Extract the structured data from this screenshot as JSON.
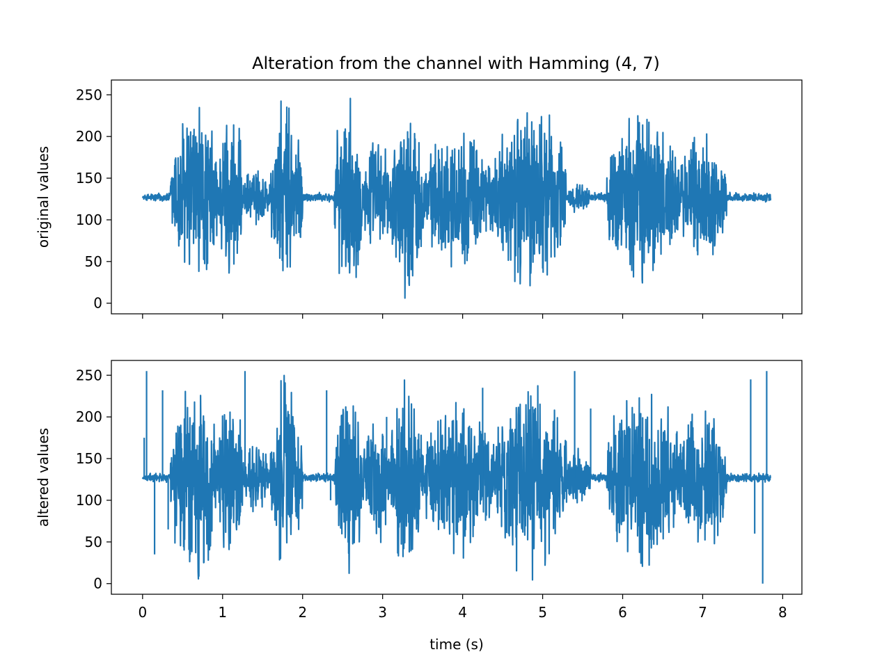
{
  "figure": {
    "title": "Alteration from the channel with Hamming (4, 7)"
  },
  "chart_data": [
    {
      "type": "line",
      "panel": "top",
      "ylabel": "original values",
      "xlabel": "",
      "xlim": [
        -0.39,
        8.24
      ],
      "ylim": [
        -12.75,
        267.75
      ],
      "x_ticks": [
        0,
        1,
        2,
        3,
        4,
        5,
        6,
        7,
        8
      ],
      "x_tick_labels_visible": false,
      "y_ticks": [
        0,
        50,
        100,
        150,
        200,
        250
      ],
      "y_tick_labels": [
        "0",
        "50",
        "100",
        "150",
        "200",
        "250"
      ],
      "grid": false,
      "series": [
        {
          "color": "#1f77b4",
          "x_range": [
            0,
            7.85
          ],
          "baseline": 127,
          "min": 0,
          "max": 255,
          "bursts": [
            {
              "start": 0.35,
              "end": 0.95,
              "amp": 128
            },
            {
              "start": 0.95,
              "end": 1.25,
              "amp": 120
            },
            {
              "start": 1.25,
              "end": 1.6,
              "amp": 40
            },
            {
              "start": 1.6,
              "end": 2.0,
              "amp": 128
            },
            {
              "start": 2.4,
              "end": 2.75,
              "amp": 128
            },
            {
              "start": 2.75,
              "end": 3.1,
              "amp": 80
            },
            {
              "start": 3.1,
              "end": 3.5,
              "amp": 128
            },
            {
              "start": 3.5,
              "end": 4.4,
              "amp": 90
            },
            {
              "start": 4.4,
              "end": 5.3,
              "amp": 128
            },
            {
              "start": 5.3,
              "end": 5.6,
              "amp": 20
            },
            {
              "start": 5.8,
              "end": 6.7,
              "amp": 120
            },
            {
              "start": 6.7,
              "end": 7.3,
              "amp": 90
            }
          ]
        }
      ]
    },
    {
      "type": "line",
      "panel": "bottom",
      "ylabel": "altered values",
      "xlabel": "time (s)",
      "xlim": [
        -0.39,
        8.24
      ],
      "ylim": [
        -12.75,
        267.75
      ],
      "x_ticks": [
        0,
        1,
        2,
        3,
        4,
        5,
        6,
        7,
        8
      ],
      "x_tick_labels": [
        "0",
        "1",
        "2",
        "3",
        "4",
        "5",
        "6",
        "7",
        "8"
      ],
      "y_ticks": [
        0,
        50,
        100,
        150,
        200,
        250
      ],
      "y_tick_labels": [
        "0",
        "50",
        "100",
        "150",
        "200",
        "250"
      ],
      "grid": false,
      "series": [
        {
          "color": "#1f77b4",
          "x_range": [
            0,
            7.85
          ],
          "baseline": 127,
          "min": 0,
          "max": 255,
          "bursts": [
            {
              "start": 0.35,
              "end": 0.95,
              "amp": 128
            },
            {
              "start": 0.95,
              "end": 1.25,
              "amp": 120
            },
            {
              "start": 1.25,
              "end": 1.6,
              "amp": 50
            },
            {
              "start": 1.6,
              "end": 2.0,
              "amp": 128
            },
            {
              "start": 2.4,
              "end": 2.75,
              "amp": 128
            },
            {
              "start": 2.75,
              "end": 3.1,
              "amp": 90
            },
            {
              "start": 3.1,
              "end": 3.5,
              "amp": 128
            },
            {
              "start": 3.5,
              "end": 4.4,
              "amp": 100
            },
            {
              "start": 4.4,
              "end": 5.3,
              "amp": 128
            },
            {
              "start": 5.3,
              "end": 5.6,
              "amp": 40
            },
            {
              "start": 5.8,
              "end": 6.7,
              "amp": 120
            },
            {
              "start": 6.7,
              "end": 7.3,
              "amp": 100
            }
          ],
          "spikes": [
            {
              "t": 0.05,
              "v": 255
            },
            {
              "t": 0.02,
              "v": 175
            },
            {
              "t": 0.15,
              "v": 35
            },
            {
              "t": 0.25,
              "v": 232
            },
            {
              "t": 0.32,
              "v": 65
            },
            {
              "t": 1.28,
              "v": 255
            },
            {
              "t": 2.3,
              "v": 232
            },
            {
              "t": 2.35,
              "v": 100
            },
            {
              "t": 3.05,
              "v": 200
            },
            {
              "t": 4.25,
              "v": 235
            },
            {
              "t": 5.4,
              "v": 255
            },
            {
              "t": 5.6,
              "v": 210
            },
            {
              "t": 7.6,
              "v": 245
            },
            {
              "t": 7.65,
              "v": 60
            },
            {
              "t": 7.75,
              "v": 0
            },
            {
              "t": 7.8,
              "v": 255
            }
          ]
        }
      ]
    }
  ]
}
